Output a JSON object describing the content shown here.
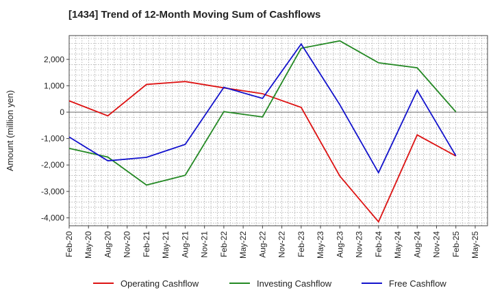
{
  "chart_data": {
    "type": "line",
    "title": "[1434]  Trend of 12-Month Moving Sum of Cashflows",
    "xlabel": "",
    "ylabel": "Amount (million yen)",
    "ylim": [
      -4300,
      2900
    ],
    "yticks": [
      2000,
      1000,
      0,
      -1000,
      -2000,
      -3000,
      -4000
    ],
    "ytick_labels": [
      "2,000",
      "1,000",
      "0",
      "-1,000",
      "-2,000",
      "-3,000",
      "-4,000"
    ],
    "x_tick_labels": [
      "Feb-20",
      "May-20",
      "Aug-20",
      "Nov-20",
      "Feb-21",
      "May-21",
      "Aug-21",
      "Nov-21",
      "Feb-22",
      "May-22",
      "Aug-22",
      "Nov-22",
      "Feb-23",
      "May-23",
      "Aug-23",
      "Nov-23",
      "Feb-24",
      "May-24",
      "Aug-24",
      "Nov-24",
      "Feb-25",
      "May-25"
    ],
    "grid": true,
    "legend_position": "bottom",
    "series": [
      {
        "name": "Operating Cashflow",
        "color": "#dd1111",
        "x": [
          "Feb-20",
          "Aug-20",
          "Feb-21",
          "Aug-21",
          "Feb-22",
          "Aug-22",
          "Feb-23",
          "Aug-23",
          "Feb-24",
          "Aug-24",
          "Feb-25"
        ],
        "values": [
          430,
          -140,
          1050,
          1160,
          920,
          700,
          180,
          -2420,
          -4150,
          -860,
          -1660
        ]
      },
      {
        "name": "Investing Cashflow",
        "color": "#228822",
        "x": [
          "Feb-20",
          "Aug-20",
          "Feb-21",
          "Aug-21",
          "Feb-22",
          "Aug-22",
          "Feb-23",
          "Aug-23",
          "Feb-24",
          "Aug-24",
          "Feb-25"
        ],
        "values": [
          -1370,
          -1700,
          -2760,
          -2390,
          20,
          -180,
          2420,
          2700,
          1870,
          1680,
          10
        ]
      },
      {
        "name": "Free Cashflow",
        "color": "#1111cc",
        "x": [
          "Feb-20",
          "Aug-20",
          "Feb-21",
          "Aug-21",
          "Feb-22",
          "Aug-22",
          "Feb-23",
          "Aug-23",
          "Feb-24",
          "Aug-24",
          "Feb-25"
        ],
        "values": [
          -940,
          -1840,
          -1710,
          -1220,
          940,
          520,
          2580,
          280,
          -2290,
          830,
          -1650
        ]
      }
    ]
  }
}
